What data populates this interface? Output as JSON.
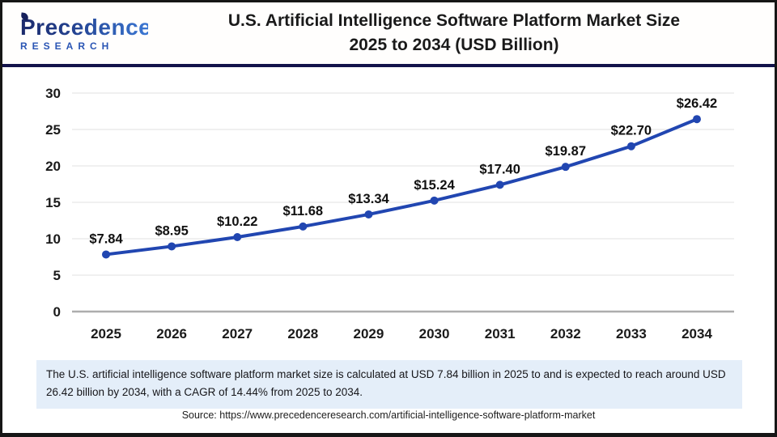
{
  "header": {
    "logo": {
      "name": "Precedence",
      "subname": "RESEARCH"
    },
    "title_line1": "U.S. Artificial Intelligence Software Platform Market Size",
    "title_line2": "2025 to 2034 (USD Billion)"
  },
  "chart_data": {
    "type": "line",
    "title": "U.S. Artificial Intelligence Software Platform Market Size 2025 to 2034 (USD Billion)",
    "categories": [
      "2025",
      "2026",
      "2027",
      "2028",
      "2029",
      "2030",
      "2031",
      "2032",
      "2033",
      "2034"
    ],
    "values": [
      7.84,
      8.95,
      10.22,
      11.68,
      13.34,
      15.24,
      17.4,
      19.87,
      22.7,
      26.42
    ],
    "point_labels": [
      "$7.84",
      "$8.95",
      "$10.22",
      "$11.68",
      "$13.34",
      "$15.24",
      "$17.40",
      "$19.87",
      "$22.70",
      "$26.42"
    ],
    "xlabel": "",
    "ylabel": "",
    "ylim": [
      0,
      30
    ],
    "yticks": [
      0,
      5,
      10,
      15,
      20,
      25,
      30
    ],
    "grid": true,
    "legend": "none",
    "line_color": "#2146b1",
    "marker_color": "#2146b1",
    "grid_color": "#e8e8e8",
    "axis_color": "#adadad",
    "tick_label_color": "#1a1a1a",
    "data_label_color": "#111111"
  },
  "footer": {
    "note": "The U.S. artificial intelligence software platform market size is calculated at USD 7.84 billion in 2025 to and is expected to reach around USD 26.42 billion by 2034, with a CAGR of 14.44% from 2025 to 2034.",
    "source": "Source: https://www.precedenceresearch.com/artificial-intelligence-software-platform-market"
  },
  "colors": {
    "header_divider": "#13134b",
    "outer_border": "#161616",
    "note_background": "#e4eef9"
  }
}
